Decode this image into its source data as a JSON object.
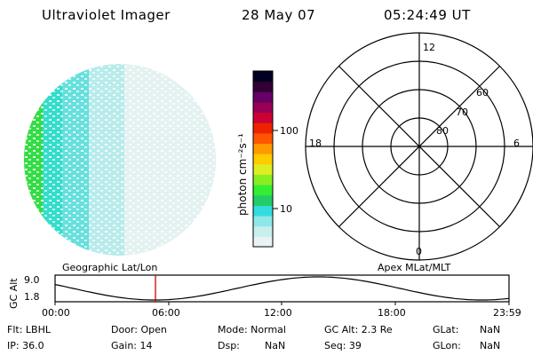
{
  "header": {
    "title": "Ultraviolet Imager",
    "date": "28 May 07",
    "time": "05:24:49 UT"
  },
  "colorbar": {
    "unit_label": "photon cm⁻²s⁻¹",
    "ticks": [
      "100",
      "10"
    ],
    "scale": "log",
    "colors": [
      "#e8f4f4",
      "#c8eeee",
      "#8fe8e8",
      "#33dddd",
      "#22cc66",
      "#33ee33",
      "#88ee22",
      "#ddee22",
      "#ffcc00",
      "#ff9900",
      "#ff5500",
      "#ee2200",
      "#cc0033",
      "#990055",
      "#660066",
      "#330033",
      "#000022"
    ]
  },
  "polar_plot": {
    "mlt_labels": {
      "top": "12",
      "left": "18",
      "right": "6",
      "bottom": "0"
    },
    "lat_labels": [
      "60",
      "70",
      "80"
    ]
  },
  "orbit_panel": {
    "left_title": "Geographic Lat/Lon",
    "right_title": "Apex MLat/MLT",
    "ylabel": "GC Alt",
    "ytick_top": "9.0",
    "ytick_bottom": "1.8",
    "xticks": [
      "00:00",
      "06:00",
      "12:00",
      "18:00",
      "23:59"
    ],
    "marker_color": "#cc0000"
  },
  "info": {
    "flt": "Flt: LBHL",
    "door": "Door: Open",
    "mode": "Mode: Normal",
    "gcalt": "GC Alt: 2.3 Re",
    "glat_label": "GLat:",
    "glat_value": "NaN",
    "ip": "IP: 36.0",
    "gain": "Gain: 14",
    "dsp_label": "Dsp:",
    "dsp_value": "NaN",
    "seq": "Seq: 39",
    "glon_label": "GLon:",
    "glon_value": "NaN"
  }
}
